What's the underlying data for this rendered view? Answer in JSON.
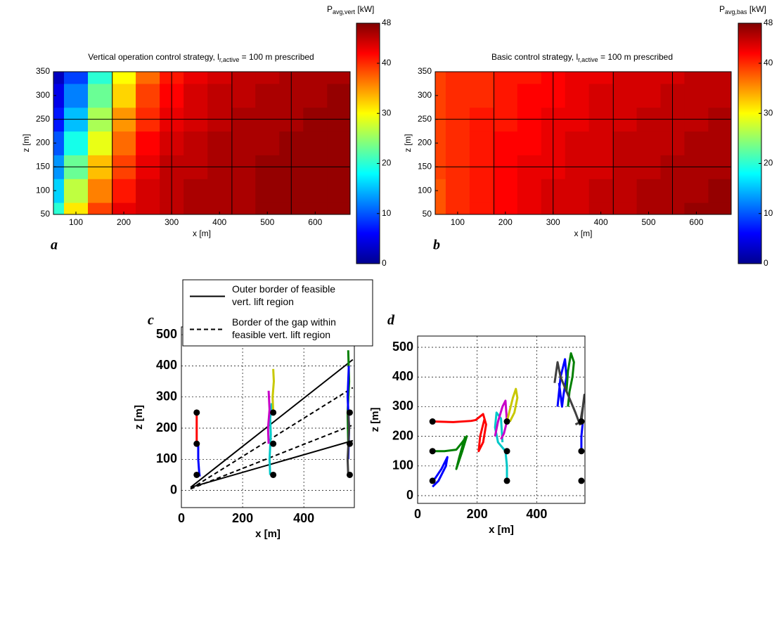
{
  "chart_data": [
    {
      "type": "heatmap",
      "panel": "a",
      "title": {
        "main": "Vertical operation control strategy, l",
        "sub": "r,active",
        "rest": " = 100 m prescribed"
      },
      "xlabel": "x [m]",
      "ylabel": "z [m]",
      "x": [
        50,
        100,
        150,
        200,
        250,
        300,
        350,
        400,
        450,
        500,
        550,
        600,
        650
      ],
      "z": [
        50,
        100,
        150,
        200,
        250,
        300,
        350
      ],
      "values": [
        [
          20,
          31,
          39,
          43,
          44,
          45,
          46,
          46,
          46,
          47,
          47,
          47,
          47
        ],
        [
          16,
          27,
          36,
          41,
          44,
          45,
          46,
          46,
          46,
          47,
          47,
          47,
          47
        ],
        [
          13,
          23,
          33,
          39,
          43,
          45,
          45,
          46,
          46,
          47,
          47,
          47,
          47
        ],
        [
          10,
          19,
          29,
          37,
          42,
          44,
          45,
          46,
          46,
          46,
          47,
          47,
          47
        ],
        [
          7,
          15,
          26,
          35,
          40,
          43,
          44,
          45,
          46,
          46,
          46,
          47,
          47
        ],
        [
          5,
          12,
          23,
          32,
          39,
          42,
          44,
          45,
          45,
          46,
          46,
          46,
          47
        ],
        [
          3,
          9,
          20,
          30,
          37,
          41,
          43,
          44,
          45,
          45,
          46,
          46,
          46
        ]
      ],
      "xlim": [
        53,
        673
      ],
      "ylim": [
        50,
        350
      ],
      "xticks": [
        100,
        200,
        300,
        400,
        500,
        600
      ],
      "yticks": [
        50,
        100,
        150,
        200,
        250,
        300,
        350
      ],
      "cell_lines_x": [
        176,
        300,
        426,
        550
      ],
      "cell_lines_z": [
        150,
        250
      ],
      "colormap": "jet",
      "colorbar": {
        "label": {
          "main": "P",
          "sub": "avg,vert",
          "rest": " [kW]"
        },
        "lim": [
          0,
          48
        ],
        "ticks": [
          0,
          10,
          20,
          30,
          40,
          48
        ]
      }
    },
    {
      "type": "heatmap",
      "panel": "b",
      "title": {
        "main": "Basic control strategy, l",
        "sub": "r,active",
        "rest": " = 100 m prescribed"
      },
      "xlabel": "x [m]",
      "ylabel": "z [m]",
      "x": [
        50,
        100,
        150,
        200,
        250,
        300,
        350,
        400,
        450,
        500,
        550,
        600,
        650
      ],
      "z": [
        50,
        100,
        150,
        200,
        250,
        300,
        350
      ],
      "values": [
        [
          38,
          40,
          41,
          42,
          43,
          44,
          44,
          45,
          45,
          46,
          46,
          47,
          47
        ],
        [
          38,
          40,
          41,
          42,
          43,
          44,
          44,
          45,
          45,
          46,
          46,
          46,
          47
        ],
        [
          39,
          40,
          41,
          42,
          43,
          43,
          44,
          44,
          45,
          45,
          46,
          46,
          46
        ],
        [
          39,
          40,
          41,
          42,
          42,
          43,
          44,
          44,
          45,
          45,
          45,
          46,
          46
        ],
        [
          39,
          40,
          41,
          41,
          42,
          43,
          43,
          44,
          44,
          45,
          45,
          45,
          46
        ],
        [
          39,
          40,
          40,
          41,
          42,
          42,
          43,
          44,
          44,
          44,
          45,
          45,
          45
        ],
        [
          39,
          40,
          40,
          41,
          41,
          42,
          43,
          43,
          44,
          44,
          44,
          45,
          45
        ]
      ],
      "xlim": [
        53,
        673
      ],
      "ylim": [
        50,
        350
      ],
      "xticks": [
        100,
        200,
        300,
        400,
        500,
        600
      ],
      "yticks": [
        50,
        100,
        150,
        200,
        250,
        300,
        350
      ],
      "cell_lines_x": [
        176,
        300,
        426,
        550
      ],
      "cell_lines_z": [
        150,
        250
      ],
      "colormap": "jet",
      "colorbar": {
        "label": {
          "main": "P",
          "sub": "avg,bas",
          "rest": " [kW]"
        },
        "lim": [
          0,
          48
        ],
        "ticks": [
          0,
          10,
          20,
          30,
          40,
          48
        ]
      }
    },
    {
      "type": "line",
      "panel": "c",
      "xlabel": "x [m]",
      "ylabel": "z [m]",
      "xlim": [
        0,
        565
      ],
      "ylim": [
        -55,
        525
      ],
      "xticks": [
        0,
        200,
        400
      ],
      "yticks": [
        0,
        100,
        200,
        300,
        400,
        500
      ],
      "grid": true,
      "legend": "top",
      "series": [
        {
          "name": [
            "Outer border of feasible",
            "vert. lift region"
          ],
          "color": "#000000",
          "style": "solid",
          "x": [
            30,
            560
          ],
          "y": [
            10,
            420
          ]
        },
        {
          "color": "#000000",
          "style": "solid",
          "x": [
            30,
            560
          ],
          "y": [
            10,
            160
          ]
        },
        {
          "name": [
            "Border of the gap within",
            "feasible vert. lift region"
          ],
          "color": "#000000",
          "style": "dashed",
          "x": [
            30,
            560
          ],
          "y": [
            5,
            330
          ]
        },
        {
          "color": "#000000",
          "style": "dashed",
          "x": [
            30,
            560
          ],
          "y": [
            5,
            210
          ]
        },
        {
          "color": "#ff0000",
          "style": "solid",
          "x": [
            50,
            50,
            50
          ],
          "y": [
            250,
            200,
            150
          ]
        },
        {
          "color": "#0000ff",
          "style": "solid",
          "x": [
            55,
            55,
            58,
            60
          ],
          "y": [
            150,
            100,
            60,
            45
          ]
        },
        {
          "color": "#00c8c8",
          "style": "solid",
          "x": [
            290,
            288,
            292,
            290,
            295
          ],
          "y": [
            50,
            100,
            180,
            230,
            280
          ]
        },
        {
          "color": "#c800c8",
          "style": "solid",
          "x": [
            285,
            283,
            288,
            285
          ],
          "y": [
            150,
            200,
            260,
            320
          ]
        },
        {
          "color": "#c8c800",
          "style": "solid",
          "x": [
            300,
            298,
            302,
            300
          ],
          "y": [
            250,
            300,
            350,
            390
          ]
        },
        {
          "color": "#008000",
          "style": "solid",
          "x": [
            545,
            543,
            548,
            545
          ],
          "y": [
            150,
            250,
            350,
            450
          ]
        },
        {
          "color": "#0000ff",
          "style": "solid",
          "x": [
            545,
            548,
            543,
            547
          ],
          "y": [
            100,
            200,
            300,
            400
          ]
        },
        {
          "color": "#404040",
          "style": "solid",
          "x": [
            545,
            543,
            548,
            545
          ],
          "y": [
            50,
            100,
            200,
            250
          ]
        },
        {
          "color": "#000000",
          "style": "marker",
          "x": [
            50,
            50,
            50,
            300,
            300,
            300,
            550,
            550,
            550
          ],
          "y": [
            50,
            150,
            250,
            50,
            150,
            250,
            50,
            150,
            250
          ]
        }
      ]
    },
    {
      "type": "line",
      "panel": "d",
      "xlabel": "x [m]",
      "ylabel": "z [m]",
      "xlim": [
        0,
        562
      ],
      "ylim": [
        -26,
        538
      ],
      "xticks": [
        0,
        200,
        400
      ],
      "yticks": [
        0,
        100,
        200,
        300,
        400,
        500
      ],
      "grid": true,
      "series": [
        {
          "color": "#ff0000",
          "style": "solid",
          "x": [
            50,
            120,
            180,
            195,
            220,
            230,
            220,
            205,
            210,
            225
          ],
          "y": [
            250,
            248,
            252,
            255,
            275,
            240,
            180,
            150,
            200,
            260
          ]
        },
        {
          "color": "#008000",
          "style": "solid",
          "x": [
            50,
            90,
            130,
            150,
            165,
            150,
            130,
            140,
            160
          ],
          "y": [
            150,
            150,
            155,
            180,
            200,
            150,
            90,
            130,
            200
          ]
        },
        {
          "color": "#0000ff",
          "style": "solid",
          "x": [
            50,
            60,
            80,
            100,
            95,
            70,
            50
          ],
          "y": [
            50,
            60,
            90,
            130,
            100,
            50,
            30
          ]
        },
        {
          "color": "#00c8c8",
          "style": "solid",
          "x": [
            300,
            300,
            295,
            270,
            260,
            265,
            280,
            285
          ],
          "y": [
            50,
            100,
            150,
            180,
            230,
            280,
            260,
            180
          ]
        },
        {
          "color": "#c800c8",
          "style": "solid",
          "x": [
            260,
            270,
            285,
            295,
            300,
            290,
            280
          ],
          "y": [
            200,
            250,
            300,
            320,
            250,
            210,
            190
          ]
        },
        {
          "color": "#c8c800",
          "style": "solid",
          "x": [
            300,
            310,
            320,
            330,
            335,
            325,
            310
          ],
          "y": [
            250,
            290,
            330,
            360,
            330,
            280,
            250
          ]
        },
        {
          "color": "#0000ff",
          "style": "solid",
          "x": [
            470,
            480,
            495,
            500,
            490,
            485,
            475
          ],
          "y": [
            300,
            400,
            460,
            400,
            340,
            300,
            380
          ]
        },
        {
          "color": "#008000",
          "style": "solid",
          "x": [
            500,
            505,
            515,
            525,
            520,
            510,
            505
          ],
          "y": [
            350,
            420,
            480,
            450,
            400,
            350,
            300
          ]
        },
        {
          "color": "#404040",
          "style": "solid",
          "x": [
            460,
            470,
            480,
            530,
            545,
            555,
            560,
            550,
            530
          ],
          "y": [
            380,
            450,
            400,
            280,
            240,
            300,
            340,
            250,
            240
          ]
        },
        {
          "color": "#0000ff",
          "style": "solid",
          "x": [
            550,
            550,
            555
          ],
          "y": [
            150,
            200,
            250
          ]
        },
        {
          "color": "#000000",
          "style": "marker",
          "x": [
            50,
            50,
            50,
            300,
            300,
            300,
            550,
            550,
            550
          ],
          "y": [
            50,
            150,
            250,
            50,
            150,
            250,
            50,
            150,
            250
          ]
        }
      ]
    }
  ]
}
